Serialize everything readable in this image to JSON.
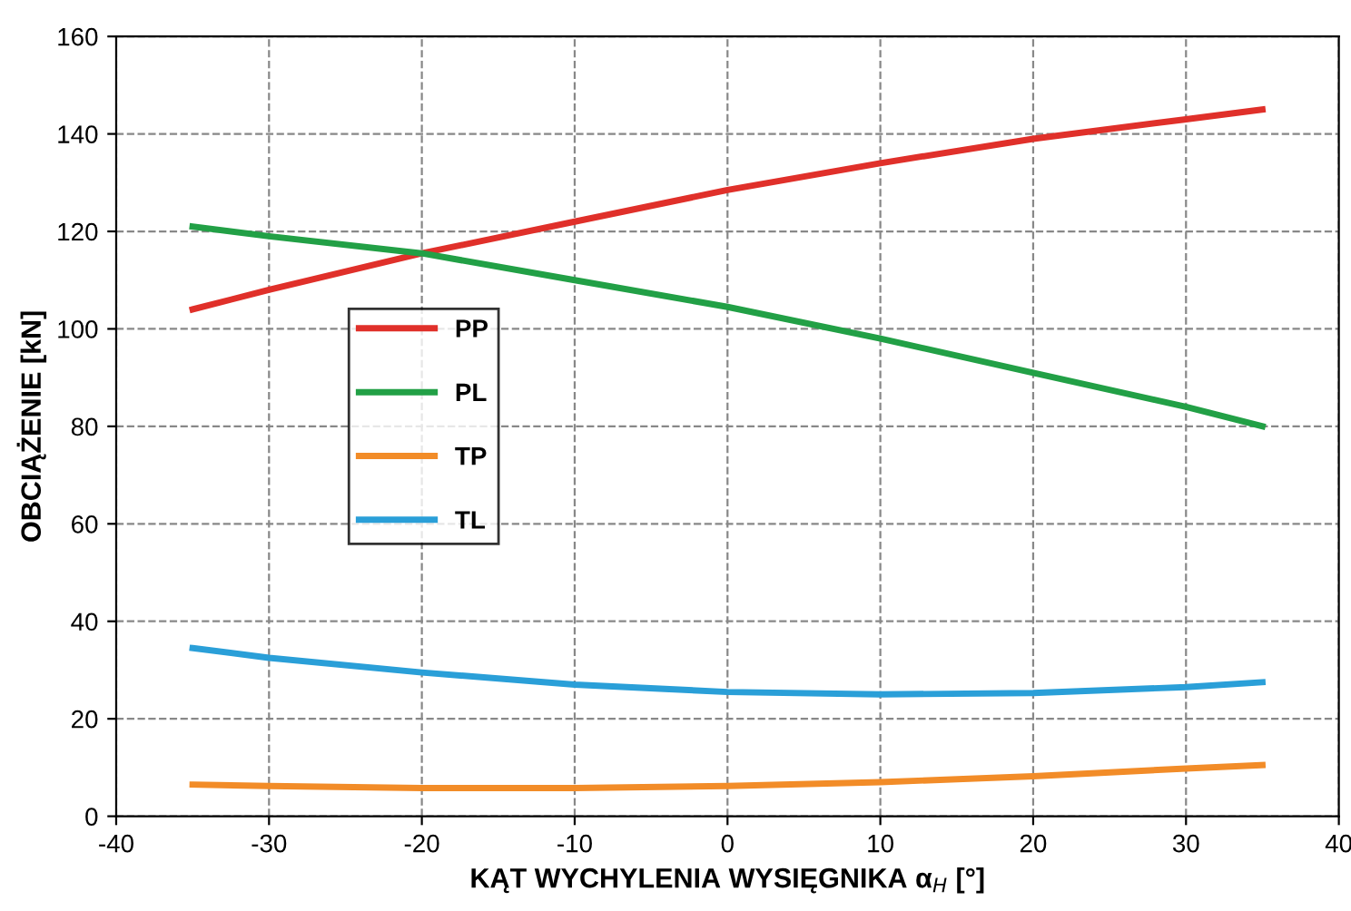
{
  "chart_data": {
    "type": "line",
    "xlabel": "KĄT WYCHYLENIA WYSIĘGNIKA α$_{H}$ [°]",
    "ylabel": "OBCIĄŻENIE [kN]",
    "x": [
      -35,
      -30,
      -20,
      -10,
      0,
      10,
      20,
      30,
      35
    ],
    "series": [
      {
        "name": "PP",
        "color": "#e0302a",
        "values": [
          104,
          108,
          115.5,
          122,
          128.5,
          134,
          139,
          143,
          145
        ]
      },
      {
        "name": "PL",
        "color": "#22a046",
        "values": [
          121,
          119,
          115.5,
          110,
          104.5,
          98,
          91,
          84,
          80
        ]
      },
      {
        "name": "TP",
        "color": "#f28c28",
        "values": [
          6.5,
          6.2,
          5.8,
          5.8,
          6.2,
          7,
          8.2,
          9.8,
          10.5
        ]
      },
      {
        "name": "TL",
        "color": "#2a9fd8",
        "values": [
          34.5,
          32.5,
          29.5,
          27,
          25.5,
          25,
          25.3,
          26.5,
          27.5
        ]
      }
    ],
    "xlim": [
      -40,
      40
    ],
    "xticks": [
      -40,
      -30,
      -20,
      -10,
      0,
      10,
      20,
      30,
      40
    ],
    "ylim": [
      0,
      160
    ],
    "yticks": [
      0,
      20,
      40,
      60,
      80,
      100,
      120,
      140,
      160
    ],
    "grid": true,
    "legend": "center left",
    "line_style": "solid"
  }
}
